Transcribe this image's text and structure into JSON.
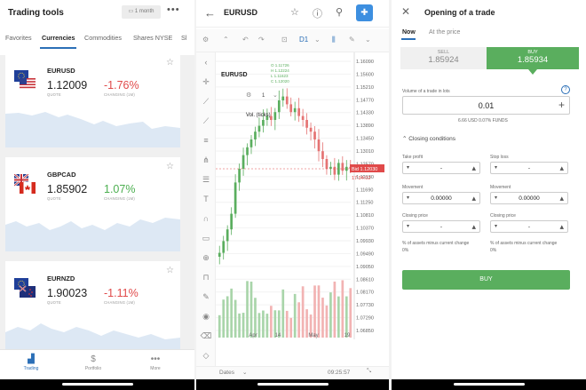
{
  "p1": {
    "title": "Trading tools",
    "period": "1 month",
    "tabs": [
      "Favorites",
      "Currencies",
      "Commodities",
      "Shares NYSE",
      "Sl"
    ],
    "cards": [
      {
        "symbol": "EURUSD",
        "price": "1.12009",
        "change": "-1.76%",
        "quote_label": "QUOTE",
        "change_label": "CHANGING (1M)",
        "change_color": "#e04a4a"
      },
      {
        "symbol": "GBPCAD",
        "price": "1.85902",
        "change": "1.07%",
        "quote_label": "QUOTE",
        "change_label": "CHANGING (1M)",
        "change_color": "#4caf50"
      },
      {
        "symbol": "EURNZD",
        "price": "1.90023",
        "change": "-1.11%",
        "quote_label": "QUOTE",
        "change_label": "CHANGING (1M)",
        "change_color": "#e04a4a"
      }
    ],
    "nav": [
      {
        "label": "Trading",
        "icon": "chart-icon"
      },
      {
        "label": "Portfolio",
        "icon": "dollar-doc-icon"
      },
      {
        "label": "More",
        "icon": "more-icon"
      }
    ]
  },
  "p2": {
    "symbol": "EURUSD",
    "interval": "D1",
    "chart_symbol": "EURUSD",
    "ohlc": [
      "O 1.11726",
      "H 1.12224",
      "L 1.11623",
      "C 1.12020"
    ],
    "indicator_count": "1",
    "volume_label": "Vol. (ticks)",
    "bid_label": "Bid 1.12030",
    "countdown": "17:34:02",
    "dates_label": "Dates",
    "time": "09:25:57",
    "chart_data": {
      "type": "candlestick",
      "y_ticks": [
        "1.16090",
        "1.15600",
        "1.15210",
        "1.14770",
        "1.14330",
        "1.13890",
        "1.13450",
        "1.13010",
        "1.12570",
        "1.12130",
        "1.11690",
        "1.11250",
        "1.10810",
        "1.10370",
        "1.09930",
        "1.09490",
        "1.09050",
        "1.08610",
        "1.08170",
        "1.07730",
        "1.07290",
        "1.06850"
      ],
      "x_ticks": [
        "Apr",
        "14",
        "May",
        "19"
      ]
    }
  },
  "p3": {
    "title": "Opening of a trade",
    "mode_tabs": [
      "Now",
      "At the price"
    ],
    "sell_label": "SELL",
    "sell_price": "1.85924",
    "buy_label": "BUY",
    "buy_price": "1.85934",
    "volume_label": "Volume of a trade in lots",
    "volume_value": "0.01",
    "volume_info": "6.66 USD   0.07% FUNDS",
    "closing_conditions": "Closing conditions",
    "take_profit": "Take profit",
    "stop_loss": "Stop loss",
    "movement": "Movement",
    "closing_price": "Closing price",
    "dash": "-",
    "zero": "0.00000",
    "pct_label": "% of assets minus current change",
    "pct_value": "0%",
    "buy_button": "BUY"
  }
}
